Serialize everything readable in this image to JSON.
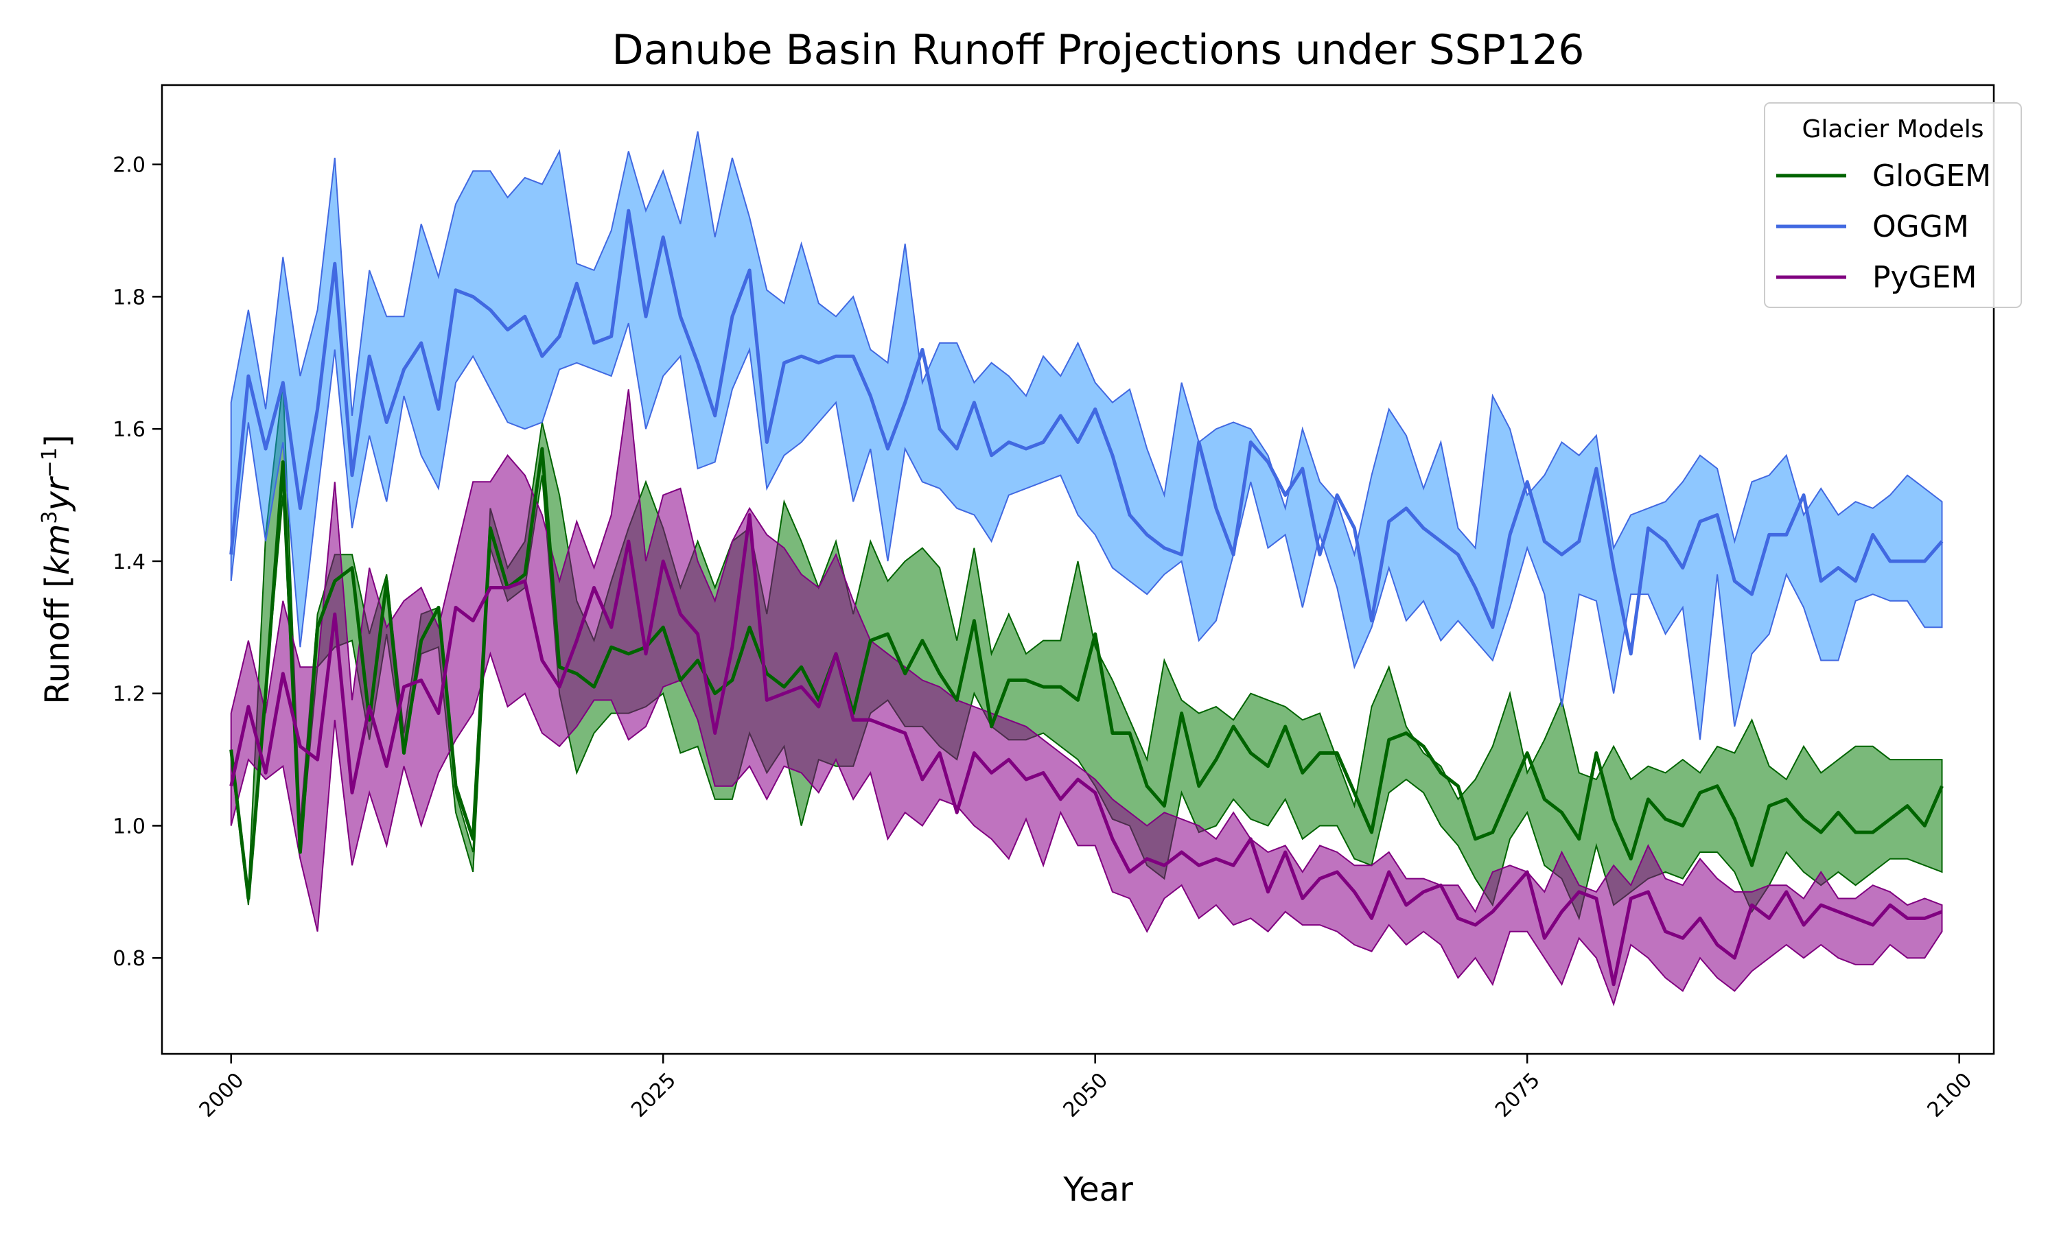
{
  "chart_data": {
    "type": "area",
    "title": "Danube Basin Runoff Projections under SSP126",
    "xlabel": "Year",
    "ylabel_text": "Runoff [",
    "ylabel_unit_base": "km",
    "ylabel_unit_exp1": "3",
    "ylabel_unit_mid": "yr",
    "ylabel_unit_exp2": "−1",
    "ylabel_close": "]",
    "xlim": [
      1996,
      2102
    ],
    "ylim": [
      0.655,
      2.12
    ],
    "xticks": [
      2000,
      2025,
      2050,
      2075,
      2100
    ],
    "xtick_labels": [
      "2000",
      "2025",
      "2050",
      "2075",
      "2100"
    ],
    "yticks": [
      0.8,
      1.0,
      1.2,
      1.4,
      1.6,
      1.8,
      2.0
    ],
    "ytick_labels": [
      "0.8",
      "1.0",
      "1.2",
      "1.4",
      "1.6",
      "1.8",
      "2.0"
    ],
    "legend_title": "Glacier Models",
    "legend_position": "top-right",
    "grid": false,
    "x_start": 2000,
    "x_end": 2099,
    "series": [
      {
        "name": "GloGEM",
        "line_color": "#006400",
        "fill_color": "#228B22",
        "fill_opacity": 0.6,
        "values": [
          1.115,
          0.89,
          1.2,
          1.55,
          0.96,
          1.3,
          1.37,
          1.39,
          1.16,
          1.37,
          1.11,
          1.28,
          1.33,
          1.06,
          0.98,
          1.45,
          1.36,
          1.38,
          1.57,
          1.24,
          1.23,
          1.21,
          1.27,
          1.26,
          1.27,
          1.3,
          1.22,
          1.25,
          1.2,
          1.22,
          1.3,
          1.23,
          1.21,
          1.24,
          1.19,
          1.26,
          1.17,
          1.28,
          1.29,
          1.23,
          1.28,
          1.23,
          1.19,
          1.31,
          1.15,
          1.22,
          1.22,
          1.21,
          1.21,
          1.19,
          1.29,
          1.14,
          1.14,
          1.06,
          1.03,
          1.17,
          1.06,
          1.1,
          1.15,
          1.11,
          1.09,
          1.15,
          1.08,
          1.11,
          1.11,
          1.05,
          0.99,
          1.13,
          1.14,
          1.12,
          1.08,
          1.06,
          0.98,
          0.99,
          1.05,
          1.11,
          1.04,
          1.02,
          0.98,
          1.11,
          1.01,
          0.95,
          1.04,
          1.01,
          1.0,
          1.05,
          1.06,
          1.01,
          0.94,
          1.03,
          1.04,
          1.01,
          0.99,
          1.02,
          0.99,
          0.99,
          1.01,
          1.03,
          1.0,
          1.06
        ],
        "upper": [
          1.1,
          0.9,
          1.44,
          1.67,
          1.0,
          1.32,
          1.41,
          1.41,
          1.29,
          1.38,
          1.14,
          1.32,
          1.33,
          1.05,
          0.96,
          1.48,
          1.39,
          1.43,
          1.61,
          1.5,
          1.34,
          1.28,
          1.37,
          1.45,
          1.52,
          1.45,
          1.36,
          1.43,
          1.36,
          1.43,
          1.45,
          1.32,
          1.49,
          1.43,
          1.36,
          1.43,
          1.32,
          1.43,
          1.37,
          1.4,
          1.42,
          1.39,
          1.28,
          1.42,
          1.26,
          1.32,
          1.26,
          1.28,
          1.28,
          1.4,
          1.27,
          1.22,
          1.16,
          1.1,
          1.25,
          1.19,
          1.17,
          1.18,
          1.16,
          1.2,
          1.19,
          1.18,
          1.16,
          1.17,
          1.1,
          1.03,
          1.18,
          1.24,
          1.15,
          1.11,
          1.09,
          1.04,
          1.07,
          1.12,
          1.2,
          1.08,
          1.13,
          1.19,
          1.08,
          1.07,
          1.12,
          1.07,
          1.09,
          1.08,
          1.1,
          1.08,
          1.12,
          1.11,
          1.16,
          1.09,
          1.07,
          1.12,
          1.08,
          1.1,
          1.12,
          1.12,
          1.1,
          1.1,
          1.1,
          1.1
        ],
        "lower": [
          1.1,
          0.88,
          1.2,
          1.5,
          0.96,
          1.24,
          1.27,
          1.28,
          1.13,
          1.29,
          1.11,
          1.26,
          1.27,
          1.02,
          0.93,
          1.42,
          1.34,
          1.36,
          1.53,
          1.2,
          1.08,
          1.14,
          1.17,
          1.17,
          1.18,
          1.2,
          1.11,
          1.12,
          1.04,
          1.04,
          1.14,
          1.08,
          1.12,
          1.0,
          1.1,
          1.09,
          1.09,
          1.17,
          1.19,
          1.15,
          1.15,
          1.12,
          1.1,
          1.2,
          1.15,
          1.13,
          1.13,
          1.14,
          1.12,
          1.1,
          1.06,
          1.01,
          1.0,
          0.94,
          0.92,
          1.05,
          0.99,
          1.0,
          1.04,
          1.01,
          1.0,
          1.04,
          0.98,
          1.0,
          1.0,
          0.95,
          0.94,
          1.05,
          1.07,
          1.05,
          1.0,
          0.97,
          0.92,
          0.88,
          0.98,
          1.02,
          0.94,
          0.92,
          0.86,
          0.97,
          0.88,
          0.9,
          0.92,
          0.93,
          0.92,
          0.96,
          0.96,
          0.93,
          0.87,
          0.91,
          0.96,
          0.93,
          0.91,
          0.93,
          0.91,
          0.93,
          0.95,
          0.95,
          0.94,
          0.93
        ]
      },
      {
        "name": "OGGM",
        "line_color": "#4169E1",
        "fill_color": "#1E90FF",
        "fill_opacity": 0.5,
        "values": [
          1.41,
          1.68,
          1.57,
          1.67,
          1.48,
          1.63,
          1.85,
          1.53,
          1.71,
          1.61,
          1.69,
          1.73,
          1.63,
          1.81,
          1.8,
          1.78,
          1.75,
          1.77,
          1.71,
          1.74,
          1.82,
          1.73,
          1.74,
          1.93,
          1.77,
          1.89,
          1.77,
          1.7,
          1.62,
          1.77,
          1.84,
          1.58,
          1.7,
          1.71,
          1.7,
          1.71,
          1.71,
          1.65,
          1.57,
          1.64,
          1.72,
          1.6,
          1.57,
          1.64,
          1.56,
          1.58,
          1.57,
          1.58,
          1.62,
          1.58,
          1.63,
          1.56,
          1.47,
          1.44,
          1.42,
          1.41,
          1.58,
          1.48,
          1.41,
          1.58,
          1.55,
          1.5,
          1.54,
          1.41,
          1.5,
          1.45,
          1.31,
          1.46,
          1.48,
          1.45,
          1.43,
          1.41,
          1.36,
          1.3,
          1.44,
          1.52,
          1.43,
          1.41,
          1.43,
          1.54,
          1.39,
          1.26,
          1.45,
          1.43,
          1.39,
          1.46,
          1.47,
          1.37,
          1.35,
          1.44,
          1.44,
          1.5,
          1.37,
          1.39,
          1.37,
          1.44,
          1.4,
          1.4,
          1.4,
          1.43
        ],
        "upper": [
          1.64,
          1.78,
          1.63,
          1.86,
          1.68,
          1.78,
          2.01,
          1.62,
          1.84,
          1.77,
          1.77,
          1.91,
          1.83,
          1.94,
          1.99,
          1.99,
          1.95,
          1.98,
          1.97,
          2.02,
          1.85,
          1.84,
          1.9,
          2.02,
          1.93,
          1.99,
          1.91,
          2.05,
          1.89,
          2.01,
          1.92,
          1.81,
          1.79,
          1.88,
          1.79,
          1.77,
          1.8,
          1.72,
          1.7,
          1.88,
          1.67,
          1.73,
          1.73,
          1.67,
          1.7,
          1.68,
          1.65,
          1.71,
          1.68,
          1.73,
          1.67,
          1.64,
          1.66,
          1.57,
          1.5,
          1.67,
          1.58,
          1.6,
          1.61,
          1.6,
          1.56,
          1.48,
          1.6,
          1.52,
          1.49,
          1.41,
          1.53,
          1.63,
          1.59,
          1.51,
          1.58,
          1.45,
          1.42,
          1.65,
          1.6,
          1.5,
          1.53,
          1.58,
          1.56,
          1.59,
          1.42,
          1.47,
          1.48,
          1.49,
          1.52,
          1.56,
          1.54,
          1.43,
          1.52,
          1.53,
          1.56,
          1.47,
          1.51,
          1.47,
          1.49,
          1.48,
          1.5,
          1.53,
          1.51,
          1.49
        ],
        "lower": [
          1.37,
          1.61,
          1.43,
          1.58,
          1.27,
          1.5,
          1.72,
          1.45,
          1.59,
          1.49,
          1.65,
          1.56,
          1.51,
          1.67,
          1.71,
          1.66,
          1.61,
          1.6,
          1.61,
          1.69,
          1.7,
          1.69,
          1.68,
          1.76,
          1.6,
          1.68,
          1.71,
          1.54,
          1.55,
          1.66,
          1.72,
          1.51,
          1.56,
          1.58,
          1.61,
          1.64,
          1.49,
          1.57,
          1.4,
          1.57,
          1.52,
          1.51,
          1.48,
          1.47,
          1.43,
          1.5,
          1.51,
          1.52,
          1.53,
          1.47,
          1.44,
          1.39,
          1.37,
          1.35,
          1.38,
          1.4,
          1.28,
          1.31,
          1.41,
          1.52,
          1.42,
          1.44,
          1.33,
          1.44,
          1.36,
          1.24,
          1.3,
          1.39,
          1.31,
          1.34,
          1.28,
          1.31,
          1.28,
          1.25,
          1.33,
          1.42,
          1.35,
          1.18,
          1.35,
          1.34,
          1.2,
          1.35,
          1.35,
          1.29,
          1.33,
          1.13,
          1.38,
          1.15,
          1.26,
          1.29,
          1.38,
          1.33,
          1.25,
          1.25,
          1.34,
          1.35,
          1.34,
          1.34,
          1.3,
          1.3
        ]
      },
      {
        "name": "PyGEM",
        "line_color": "#800080",
        "fill_color": "#8B008B",
        "fill_opacity": 0.55,
        "values": [
          1.06,
          1.18,
          1.08,
          1.23,
          1.12,
          1.1,
          1.32,
          1.05,
          1.18,
          1.09,
          1.21,
          1.22,
          1.17,
          1.33,
          1.31,
          1.36,
          1.36,
          1.37,
          1.25,
          1.21,
          1.28,
          1.36,
          1.3,
          1.43,
          1.26,
          1.4,
          1.32,
          1.29,
          1.14,
          1.27,
          1.47,
          1.19,
          1.2,
          1.21,
          1.18,
          1.26,
          1.16,
          1.16,
          1.15,
          1.14,
          1.07,
          1.11,
          1.02,
          1.11,
          1.08,
          1.1,
          1.07,
          1.08,
          1.04,
          1.07,
          1.05,
          0.98,
          0.93,
          0.95,
          0.94,
          0.96,
          0.94,
          0.95,
          0.94,
          0.98,
          0.9,
          0.96,
          0.89,
          0.92,
          0.93,
          0.9,
          0.86,
          0.93,
          0.88,
          0.9,
          0.91,
          0.86,
          0.85,
          0.87,
          0.9,
          0.93,
          0.83,
          0.87,
          0.9,
          0.89,
          0.76,
          0.89,
          0.9,
          0.84,
          0.83,
          0.86,
          0.82,
          0.8,
          0.88,
          0.86,
          0.9,
          0.85,
          0.88,
          0.87,
          0.86,
          0.85,
          0.88,
          0.86,
          0.86,
          0.87
        ],
        "upper": [
          1.17,
          1.28,
          1.17,
          1.34,
          1.24,
          1.24,
          1.52,
          1.19,
          1.39,
          1.3,
          1.34,
          1.36,
          1.3,
          1.41,
          1.52,
          1.52,
          1.56,
          1.53,
          1.47,
          1.37,
          1.46,
          1.39,
          1.47,
          1.66,
          1.4,
          1.5,
          1.51,
          1.4,
          1.34,
          1.43,
          1.48,
          1.44,
          1.42,
          1.38,
          1.36,
          1.41,
          1.34,
          1.28,
          1.26,
          1.24,
          1.22,
          1.21,
          1.19,
          1.18,
          1.17,
          1.16,
          1.15,
          1.13,
          1.11,
          1.09,
          1.07,
          1.04,
          1.02,
          1.0,
          1.02,
          1.01,
          1.0,
          0.98,
          1.02,
          0.98,
          0.96,
          0.97,
          0.93,
          0.97,
          0.96,
          0.94,
          0.94,
          0.96,
          0.92,
          0.92,
          0.91,
          0.91,
          0.87,
          0.93,
          0.94,
          0.93,
          0.9,
          0.96,
          0.91,
          0.9,
          0.94,
          0.91,
          0.97,
          0.92,
          0.91,
          0.95,
          0.92,
          0.9,
          0.9,
          0.91,
          0.91,
          0.89,
          0.93,
          0.89,
          0.89,
          0.91,
          0.9,
          0.88,
          0.89,
          0.88
        ],
        "lower": [
          1.0,
          1.1,
          1.07,
          1.09,
          0.95,
          0.84,
          1.16,
          0.94,
          1.05,
          0.97,
          1.09,
          1.0,
          1.08,
          1.13,
          1.17,
          1.26,
          1.18,
          1.2,
          1.14,
          1.12,
          1.15,
          1.19,
          1.19,
          1.13,
          1.15,
          1.21,
          1.22,
          1.16,
          1.06,
          1.06,
          1.09,
          1.04,
          1.09,
          1.08,
          1.05,
          1.1,
          1.04,
          1.08,
          0.98,
          1.02,
          1.0,
          1.04,
          1.03,
          1.0,
          0.98,
          0.95,
          1.01,
          0.94,
          1.02,
          0.97,
          0.97,
          0.9,
          0.89,
          0.84,
          0.89,
          0.91,
          0.86,
          0.88,
          0.85,
          0.86,
          0.84,
          0.87,
          0.85,
          0.85,
          0.84,
          0.82,
          0.81,
          0.85,
          0.82,
          0.84,
          0.82,
          0.77,
          0.8,
          0.76,
          0.84,
          0.84,
          0.8,
          0.76,
          0.83,
          0.8,
          0.73,
          0.82,
          0.8,
          0.77,
          0.75,
          0.8,
          0.77,
          0.75,
          0.78,
          0.8,
          0.82,
          0.8,
          0.82,
          0.8,
          0.79,
          0.79,
          0.82,
          0.8,
          0.8,
          0.84
        ]
      }
    ]
  }
}
